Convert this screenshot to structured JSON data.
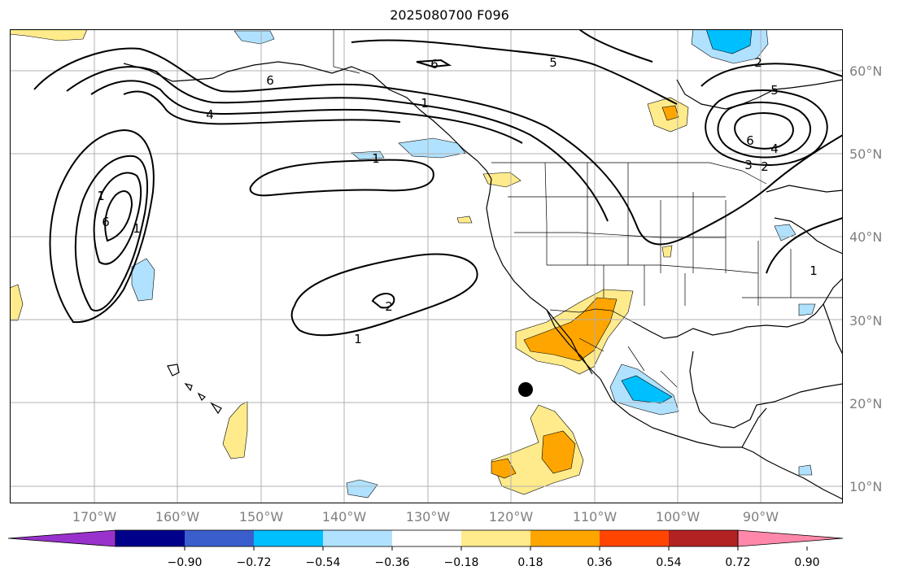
{
  "title": "2025080700 F096",
  "lat_labels": [
    "60°N",
    "50°N",
    "40°N",
    "30°N",
    "20°N",
    "10°N"
  ],
  "lon_labels": [
    "170°W",
    "160°W",
    "150°W",
    "140°W",
    "130°W",
    "120°W",
    "110°W",
    "100°W",
    "90°W"
  ],
  "contour_labels": [
    "6",
    "4",
    "6",
    "1",
    "1",
    "1",
    "6",
    "1",
    "2",
    "5",
    "6",
    "4",
    "3",
    "2",
    "1",
    "1",
    "2",
    "5"
  ],
  "colorbar": {
    "tick_labels": [
      "−0.90",
      "−0.72",
      "−0.54",
      "−0.36",
      "−0.18",
      "0.18",
      "0.36",
      "0.54",
      "0.72",
      "0.90"
    ],
    "colors": [
      "#9932cc",
      "#00008b",
      "#3a5fcd",
      "#00bfff",
      "#b0e2ff",
      "#ffffff",
      "#ffeb8c",
      "#ffa500",
      "#ff4500",
      "#b22222",
      "#ff88aa"
    ]
  },
  "marker": {
    "name": "black-dot",
    "lat": 21.5,
    "lon": -118
  }
}
